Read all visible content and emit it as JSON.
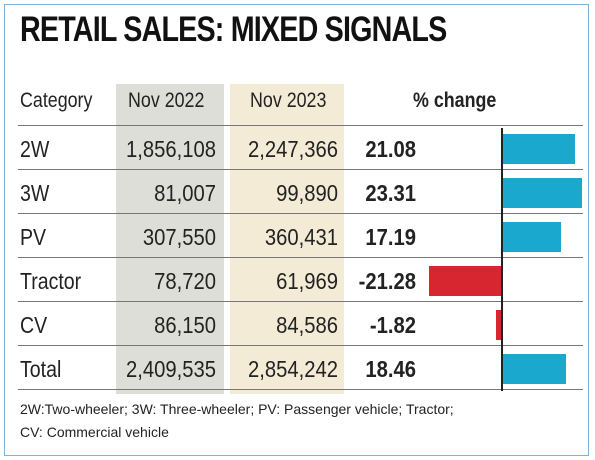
{
  "chart_data": {
    "type": "table",
    "title": "RETAIL SALES: MIXED SIGNALS",
    "columns": [
      "Category",
      "Nov 2022",
      "Nov 2023",
      "% change"
    ],
    "rows": [
      {
        "category": "2W",
        "nov2022": "1,856,108",
        "nov2023": "2,247,366",
        "pct": "21.08",
        "value": 21.08
      },
      {
        "category": "3W",
        "nov2022": "81,007",
        "nov2023": "99,890",
        "pct": "23.31",
        "value": 23.31
      },
      {
        "category": "PV",
        "nov2022": "307,550",
        "nov2023": "360,431",
        "pct": "17.19",
        "value": 17.19
      },
      {
        "category": "Tractor",
        "nov2022": "78,720",
        "nov2023": "61,969",
        "pct": "-21.28",
        "value": -21.28
      },
      {
        "category": "CV",
        "nov2022": "86,150",
        "nov2023": "84,586",
        "pct": "-1.82",
        "value": -1.82
      },
      {
        "category": "Total",
        "nov2022": "2,409,535",
        "nov2023": "2,854,242",
        "pct": "18.46",
        "value": 18.46
      }
    ],
    "colors": {
      "positive": "#1aa8cf",
      "negative": "#d7262f",
      "nov2022_shade": "#deded9",
      "nov2023_shade": "#f4ebd6"
    }
  },
  "footnote": {
    "line1": "2W:Two-wheeler; 3W: Three-wheeler; PV: Passenger vehicle; Tractor;",
    "line2": "CV:  Commercial vehicle"
  }
}
